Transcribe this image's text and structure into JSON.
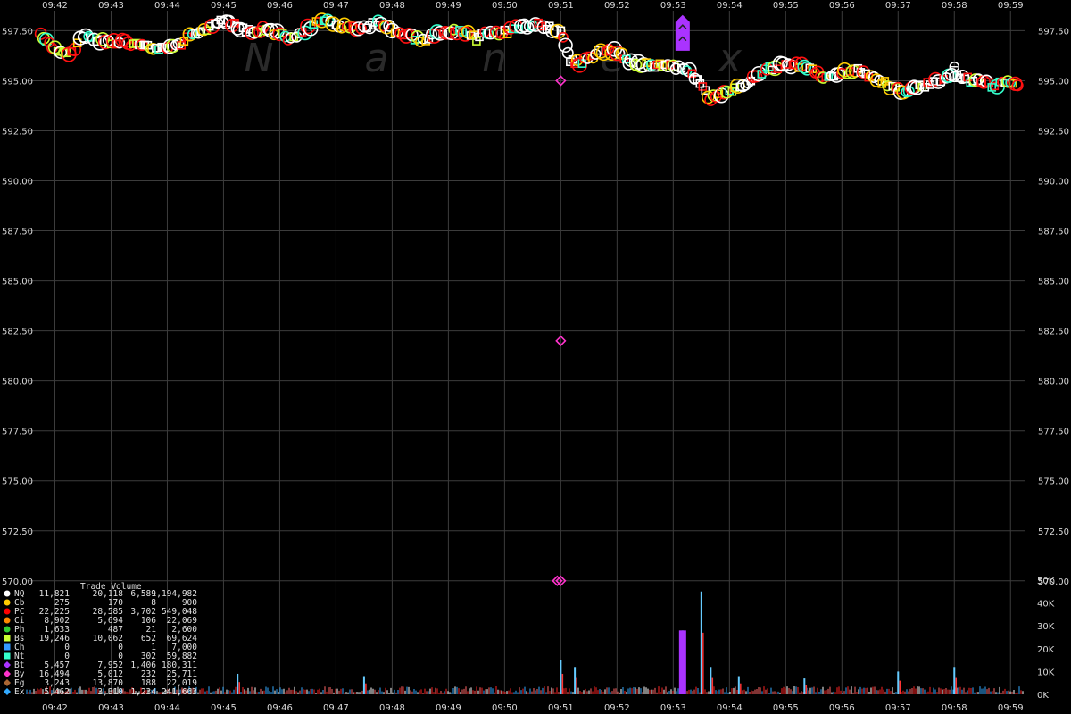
{
  "chart_data": {
    "type": "scatter",
    "title": "",
    "watermark": "Nanex",
    "x_ticks": [
      "09:42",
      "09:43",
      "09:44",
      "09:45",
      "09:46",
      "09:47",
      "09:48",
      "09:49",
      "09:50",
      "09:51",
      "09:52",
      "09:53",
      "09:54",
      "09:55",
      "09:56",
      "09:57",
      "09:58",
      "09:59"
    ],
    "x_range": [
      "09:41:30",
      "09:59:15"
    ],
    "price_axis": {
      "ylim": [
        569.5,
        598.5
      ],
      "ticks": [
        "597.50",
        "595.00",
        "592.50",
        "590.00",
        "587.50",
        "585.00",
        "582.50",
        "580.00",
        "577.50",
        "575.00",
        "572.50",
        "570.00"
      ],
      "grid": true
    },
    "volume_axis": {
      "ylim": [
        0,
        50000
      ],
      "ticks": [
        "50K",
        "40K",
        "30K",
        "20K",
        "10K",
        "0K"
      ]
    },
    "price_series": {
      "description": "Dense per-exchange trade markers",
      "points": [
        [
          "09:41:45",
          597.3
        ],
        [
          "09:42:00",
          596.6
        ],
        [
          "09:42:15",
          596.3
        ],
        [
          "09:42:30",
          597.2
        ],
        [
          "09:42:45",
          597.0
        ],
        [
          "09:43:00",
          596.9
        ],
        [
          "09:43:15",
          597.0
        ],
        [
          "09:43:30",
          596.7
        ],
        [
          "09:43:45",
          596.6
        ],
        [
          "09:44:00",
          596.7
        ],
        [
          "09:44:15",
          596.9
        ],
        [
          "09:44:30",
          597.4
        ],
        [
          "09:44:45",
          597.6
        ],
        [
          "09:45:00",
          598.0
        ],
        [
          "09:45:15",
          597.7
        ],
        [
          "09:45:30",
          597.4
        ],
        [
          "09:45:45",
          597.6
        ],
        [
          "09:46:00",
          597.3
        ],
        [
          "09:46:15",
          597.1
        ],
        [
          "09:46:30",
          597.6
        ],
        [
          "09:46:45",
          598.0
        ],
        [
          "09:47:00",
          597.8
        ],
        [
          "09:47:15",
          597.6
        ],
        [
          "09:47:30",
          597.7
        ],
        [
          "09:47:45",
          597.9
        ],
        [
          "09:48:00",
          597.6
        ],
        [
          "09:48:15",
          597.3
        ],
        [
          "09:48:30",
          597.0
        ],
        [
          "09:48:45",
          597.3
        ],
        [
          "09:49:00",
          597.4
        ],
        [
          "09:49:15",
          597.5
        ],
        [
          "09:49:30",
          597.1
        ],
        [
          "09:49:45",
          597.5
        ],
        [
          "09:50:00",
          597.4
        ],
        [
          "09:50:15",
          597.7
        ],
        [
          "09:50:30",
          597.8
        ],
        [
          "09:50:45",
          597.7
        ],
        [
          "09:51:00",
          597.4
        ],
        [
          "09:51:10",
          596.0
        ],
        [
          "09:51:20",
          595.9
        ],
        [
          "09:51:40",
          596.4
        ],
        [
          "09:52:00",
          596.5
        ],
        [
          "09:52:10",
          596.0
        ],
        [
          "09:52:20",
          595.9
        ],
        [
          "09:52:40",
          595.8
        ],
        [
          "09:53:00",
          595.7
        ],
        [
          "09:53:20",
          595.4
        ],
        [
          "09:53:40",
          594.1
        ],
        [
          "09:54:00",
          594.4
        ],
        [
          "09:54:20",
          594.9
        ],
        [
          "09:54:40",
          595.6
        ],
        [
          "09:55:00",
          595.8
        ],
        [
          "09:55:20",
          595.7
        ],
        [
          "09:55:40",
          595.2
        ],
        [
          "09:56:00",
          595.4
        ],
        [
          "09:56:20",
          595.5
        ],
        [
          "09:56:40",
          595.0
        ],
        [
          "09:57:00",
          594.5
        ],
        [
          "09:57:20",
          594.6
        ],
        [
          "09:57:40",
          595.0
        ],
        [
          "09:58:00",
          595.3
        ],
        [
          "09:58:20",
          595.0
        ],
        [
          "09:58:40",
          594.8
        ],
        [
          "09:59:00",
          594.9
        ],
        [
          "09:59:10",
          594.8
        ]
      ]
    },
    "outlier_trades": [
      {
        "exchange": "By",
        "time": "09:51:00",
        "price": 595.0
      },
      {
        "exchange": "By",
        "time": "09:51:00",
        "price": 582.0
      },
      {
        "exchange": "By",
        "time": "09:51:00",
        "price": 570.0
      }
    ],
    "purple_spike": {
      "exchange": "Bt",
      "time": "09:53:10",
      "price_low": 596.5,
      "price_high": 598.2
    },
    "volume_spikes": [
      {
        "time": "09:45:15",
        "value": 9000
      },
      {
        "time": "09:47:30",
        "value": 8000
      },
      {
        "time": "09:51:00",
        "value": 15000
      },
      {
        "time": "09:51:15",
        "value": 12000
      },
      {
        "time": "09:53:10",
        "value": 28000
      },
      {
        "time": "09:53:30",
        "value": 45000
      },
      {
        "time": "09:53:40",
        "value": 12000
      },
      {
        "time": "09:54:10",
        "value": 8000
      },
      {
        "time": "09:55:20",
        "value": 7000
      },
      {
        "time": "09:57:00",
        "value": 10000
      },
      {
        "time": "09:58:00",
        "value": 12000
      }
    ],
    "legend": {
      "header": "Trade Volume",
      "rows": [
        {
          "code": "NQ",
          "c1": "11,821",
          "c2": "20,118",
          "c3": "6,589",
          "c4": "1,194,982",
          "color": "#ffffff",
          "shape": "circle"
        },
        {
          "code": "Cb",
          "c1": "275",
          "c2": "170",
          "c3": "8",
          "c4": "900",
          "color": "#ffcc00",
          "shape": "circle"
        },
        {
          "code": "PC",
          "c1": "22,225",
          "c2": "28,585",
          "c3": "3,702",
          "c4": "549,048",
          "color": "#ff0000",
          "shape": "circle"
        },
        {
          "code": "Ci",
          "c1": "8,902",
          "c2": "5,694",
          "c3": "106",
          "c4": "22,069",
          "color": "#ff8800",
          "shape": "circle"
        },
        {
          "code": "Ph",
          "c1": "1,633",
          "c2": "487",
          "c3": "21",
          "c4": "2,600",
          "color": "#33cc33",
          "shape": "circle"
        },
        {
          "code": "Bs",
          "c1": "19,246",
          "c2": "10,062",
          "c3": "652",
          "c4": "69,624",
          "color": "#ccff33",
          "shape": "square"
        },
        {
          "code": "Ch",
          "c1": "0",
          "c2": "0",
          "c3": "1",
          "c4": "7,000",
          "color": "#3399ff",
          "shape": "square"
        },
        {
          "code": "Nt",
          "c1": "0",
          "c2": "0",
          "c3": "302",
          "c4": "59,882",
          "color": "#33ffcc",
          "shape": "square"
        },
        {
          "code": "Bt",
          "c1": "5,457",
          "c2": "7,952",
          "c3": "1,406",
          "c4": "180,311",
          "color": "#aa33ff",
          "shape": "diamond"
        },
        {
          "code": "By",
          "c1": "16,494",
          "c2": "5,012",
          "c3": "232",
          "c4": "25,711",
          "color": "#ff33cc",
          "shape": "diamond"
        },
        {
          "code": "Eg",
          "c1": "3,243",
          "c2": "13,870",
          "c3": "188",
          "c4": "22,019",
          "color": "#aa6633",
          "shape": "diamond"
        },
        {
          "code": "Ex",
          "c1": "5,462",
          "c2": "3,310",
          "c3": "1,234",
          "c4": "241,663",
          "color": "#33aaff",
          "shape": "diamond"
        }
      ]
    }
  }
}
